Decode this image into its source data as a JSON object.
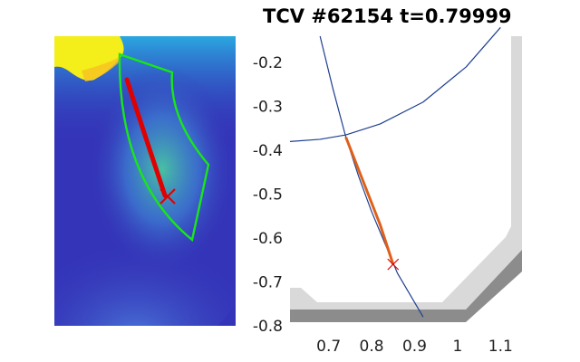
{
  "title": "TCV #62154 t=0.79999",
  "colors": {
    "camera_background": "#3434b8",
    "camera_hotspot": "#f4ee1a",
    "roi_outline": "#19e619",
    "fit_track": "#e00000",
    "separatrix": "#1f3f8f",
    "fit_line": "#e0601a",
    "wall_light": "#d9d9d9",
    "wall_dark": "#8c8c8c"
  },
  "chart_data": [
    {
      "type": "heatmap",
      "description_key": "camera-image",
      "xlabel": "",
      "ylabel": "",
      "marker": "x"
    },
    {
      "type": "line",
      "title": "",
      "xlabel": "",
      "ylabel": "",
      "xlim": [
        0.61,
        1.15
      ],
      "ylim": [
        -0.8,
        -0.14
      ],
      "xticks": [
        0.7,
        0.8,
        0.9,
        1.0,
        1.1
      ],
      "xtick_labels": [
        "0.7",
        "0.8",
        "0.9",
        "1",
        "1.1"
      ],
      "yticks": [
        -0.2,
        -0.3,
        -0.4,
        -0.5,
        -0.6,
        -0.7,
        -0.8
      ],
      "ytick_labels": [
        "-0.2",
        "-0.3",
        "-0.4",
        "-0.5",
        "-0.6",
        "-0.7",
        "-0.8"
      ],
      "series": [
        {
          "kind": "separatrix-leg",
          "x": [
            0.68,
            0.71,
            0.74,
            0.77,
            0.8,
            0.83,
            0.86,
            0.89,
            0.92
          ],
          "y": [
            -0.14,
            -0.26,
            -0.37,
            -0.46,
            -0.54,
            -0.61,
            -0.68,
            -0.73,
            -0.78
          ]
        },
        {
          "kind": "separatrix-arc",
          "x": [
            0.61,
            0.68,
            0.74,
            0.82,
            0.92,
            1.02,
            1.1
          ],
          "y": [
            -0.38,
            -0.375,
            -0.365,
            -0.34,
            -0.29,
            -0.21,
            -0.12
          ]
        },
        {
          "kind": "fit-line",
          "x": [
            0.74,
            0.78,
            0.82,
            0.85
          ],
          "y": [
            -0.37,
            -0.47,
            -0.57,
            -0.66
          ]
        }
      ],
      "marker": {
        "x": 0.85,
        "y": -0.66
      }
    }
  ]
}
